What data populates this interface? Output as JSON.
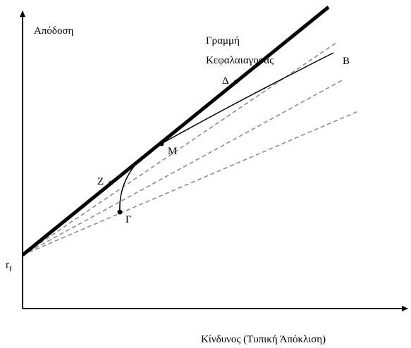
{
  "y_axis_label": "Απόδοση",
  "x_axis_label": "Κίνδυνος (Τυπική Άπόκλιση)",
  "line_label": [
    "Γραμμή",
    "Κεφαλαιαγοράς"
  ],
  "points": {
    "d": "Δ",
    "b": "Β",
    "m": "Μ",
    "z": "Ζ",
    "g": "Γ"
  },
  "risk_free": {
    "text": "r",
    "subscript": "f"
  }
}
